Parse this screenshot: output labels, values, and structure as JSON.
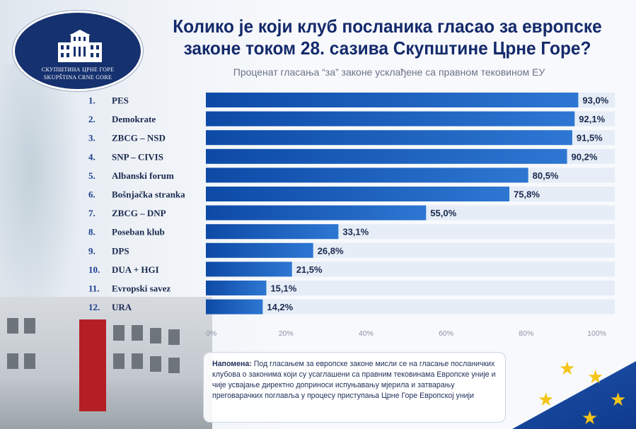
{
  "header": {
    "title_line1": "Колико је који клуб посланика гласао за европске",
    "title_line2": "законе током 28. сазива Скупштине Црне Горе?",
    "subtitle": "Проценат гласања “за” законе усклађене са правном тековином ЕУ"
  },
  "logo": {
    "line1": "СКУПШТИНА ЦРНЕ ГОРЕ",
    "line2": "SKUPŠTINA CRNE GORE"
  },
  "chart_data": {
    "type": "bar",
    "orientation": "horizontal",
    "categories": [
      "PES",
      "Demokrate",
      "ZBCG – NSD",
      "SNP – CIVIS",
      "Albanski forum",
      "Bošnjačka stranka",
      "ZBCG – DNP",
      "Poseban klub",
      "DPS",
      "DUA + HGI",
      "Evropski savez",
      "URA"
    ],
    "ranks": [
      "1.",
      "2.",
      "3.",
      "4.",
      "5.",
      "6.",
      "7.",
      "8.",
      "9.",
      "10.",
      "11.",
      "12."
    ],
    "values": [
      93.0,
      92.1,
      91.5,
      90.2,
      80.5,
      75.8,
      55.0,
      33.1,
      26.8,
      21.5,
      15.1,
      14.2
    ],
    "value_labels": [
      "93,0%",
      "92,1%",
      "91,5%",
      "90,2%",
      "80,5%",
      "75,8%",
      "55,0%",
      "33,1%",
      "26,8%",
      "21,5%",
      "15,1%",
      "14,2%"
    ],
    "xlim": [
      0,
      100
    ],
    "ticks": [
      0,
      20,
      40,
      60,
      80,
      100
    ],
    "tick_labels": [
      "0%",
      "20%",
      "40%",
      "60%",
      "80%",
      "100%"
    ],
    "grid": false,
    "colors": {
      "bar_dark": "#0d4aa6",
      "bar_light": "#2d77d2",
      "track": "#e6edf7",
      "rank": "#1b3f8f",
      "label": "#1a2a4e",
      "value": "#1a2a4e",
      "tick": "#8a93a6"
    }
  },
  "note": {
    "label": "Напомена:",
    "text": " Под гласањем за европске законе мисли се на гласање посланичких клубова о законима који су усаглашени са правним тековинама Европске уније и чије усвајање директно доприноси испуњавању мјерила и затварању преговарачких поглавља у процесу приступања Црне Горе Европској унији"
  }
}
